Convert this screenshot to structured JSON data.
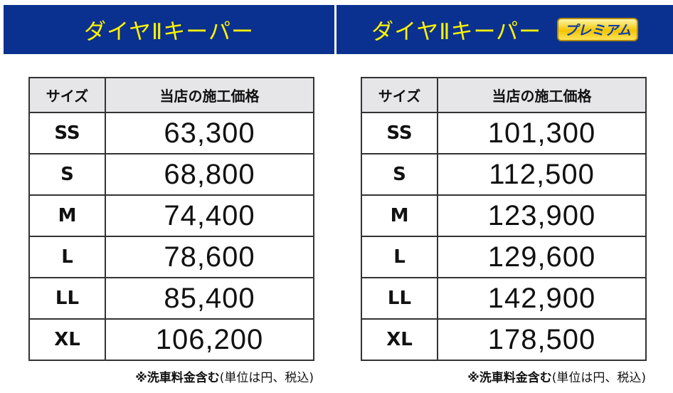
{
  "left": {
    "title": "ダイヤⅡキーパー",
    "headers": [
      "サイズ",
      "当店の施工価格"
    ],
    "rows": [
      {
        "size": "SS",
        "price": "63,300"
      },
      {
        "size": "S",
        "price": "68,800"
      },
      {
        "size": "M",
        "price": "74,400"
      },
      {
        "size": "L",
        "price": "78,600"
      },
      {
        "size": "LL",
        "price": "85,400"
      },
      {
        "size": "XL",
        "price": "106,200"
      }
    ],
    "note_bold": "※洗車料金含む",
    "note": "(単位は円、税込)"
  },
  "right": {
    "title": "ダイヤⅡキーパー",
    "badge": "プレミアム",
    "headers": [
      "サイズ",
      "当店の施工価格"
    ],
    "rows": [
      {
        "size": "SS",
        "price": "101,300"
      },
      {
        "size": "S",
        "price": "112,500"
      },
      {
        "size": "M",
        "price": "123,900"
      },
      {
        "size": "L",
        "price": "129,600"
      },
      {
        "size": "LL",
        "price": "142,900"
      },
      {
        "size": "XL",
        "price": "178,500"
      }
    ],
    "note_bold": "※洗車料金含む",
    "note": "(単位は円、税込)"
  },
  "colors": {
    "header_bg": "#0a3190",
    "title": "#fff200",
    "table_header_bg": "#e6e6e8"
  }
}
